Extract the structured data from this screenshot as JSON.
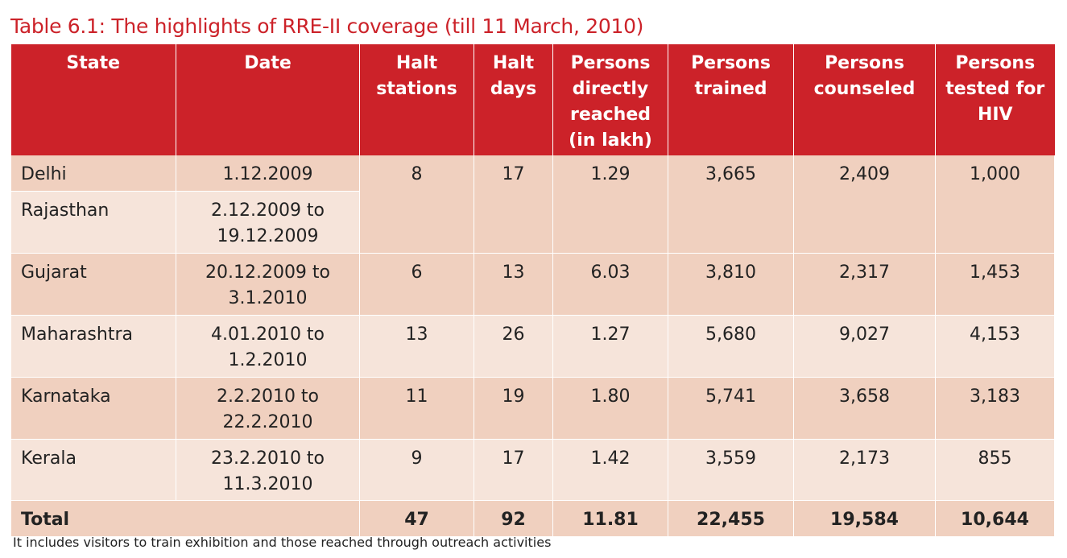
{
  "title": "Table 6.1: The highlights of RRE-II coverage (till 11 March, 2010)",
  "colors": {
    "header": "#cc2229",
    "row_dark": "#f0d0bf",
    "row_light": "#f6e4da"
  },
  "headers": [
    "State",
    "Date",
    "Halt stations",
    "Halt days",
    "Persons directly reached (in lakh)",
    "Persons trained",
    "Persons counseled",
    "Persons tested for HIV"
  ],
  "rows": [
    {
      "state": "Delhi",
      "date": "1.12.2009",
      "halt_stations": "8",
      "halt_days": "17",
      "reached": "1.29",
      "trained": "3,665",
      "counseled": "2,409",
      "tested": "1,000"
    },
    {
      "state": "Rajasthan",
      "date": "2.12.2009 to 19.12.2009"
    },
    {
      "state": "Gujarat",
      "date": "20.12.2009 to 3.1.2010",
      "halt_stations": "6",
      "halt_days": "13",
      "reached": "6.03",
      "trained": "3,810",
      "counseled": "2,317",
      "tested": "1,453"
    },
    {
      "state": "Maharashtra",
      "date": "4.01.2010 to 1.2.2010",
      "halt_stations": "13",
      "halt_days": "26",
      "reached": "1.27",
      "trained": "5,680",
      "counseled": "9,027",
      "tested": "4,153"
    },
    {
      "state": "Karnataka",
      "date": "2.2.2010 to 22.2.2010",
      "halt_stations": "11",
      "halt_days": "19",
      "reached": "1.80",
      "trained": "5,741",
      "counseled": "3,658",
      "tested": "3,183"
    },
    {
      "state": "Kerala",
      "date": "23.2.2010 to 11.3.2010",
      "halt_stations": "9",
      "halt_days": "17",
      "reached": "1.42",
      "trained": "3,559",
      "counseled": "2,173",
      "tested": "855"
    }
  ],
  "total": {
    "label": "Total",
    "halt_stations": "47",
    "halt_days": "92",
    "reached": "11.81",
    "trained": "22,455",
    "counseled": "19,584",
    "tested": "10,644"
  },
  "footnote": "It includes visitors to train exhibition and those reached through outreach activities"
}
